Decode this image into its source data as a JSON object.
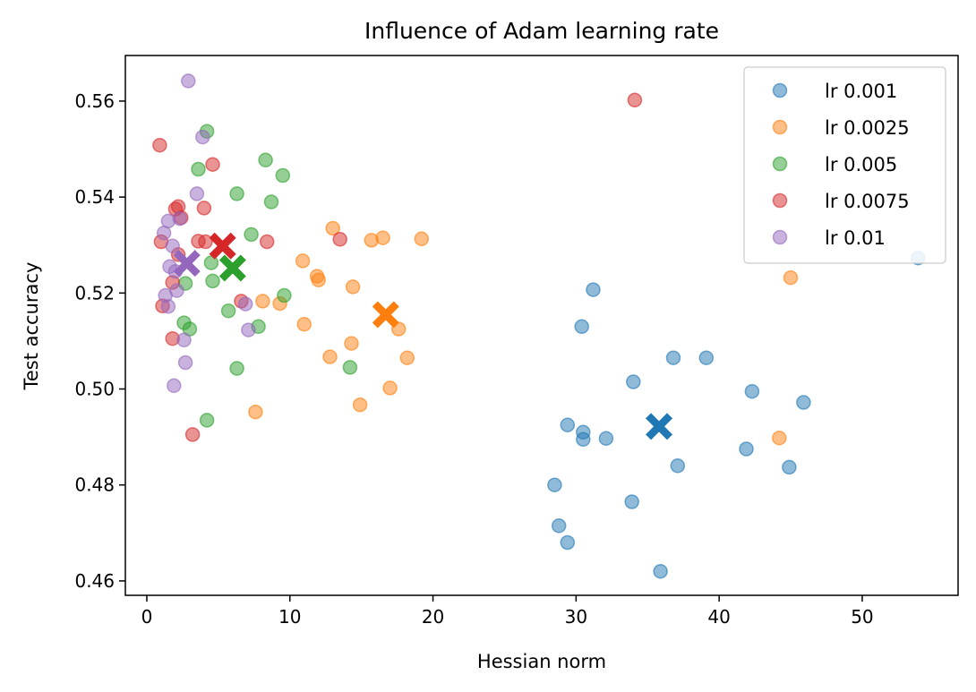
{
  "chart_data": {
    "type": "scatter",
    "title": "Influence of Adam learning rate",
    "xlabel": "Hessian norm",
    "ylabel": "Test accuracy",
    "xlim": [
      -1.5,
      56.7
    ],
    "ylim": [
      0.457,
      0.5695
    ],
    "xticks": [
      0,
      10,
      20,
      30,
      40,
      50
    ],
    "yticks": [
      0.46,
      0.48,
      0.5,
      0.52,
      0.54,
      0.56
    ],
    "ytick_labels": [
      "0.46",
      "0.48",
      "0.50",
      "0.52",
      "0.54",
      "0.56"
    ],
    "grid": false,
    "legend_position": "top-right",
    "series": [
      {
        "name": "lr 0.001",
        "color": "#1f77b4",
        "points": [
          [
            28.5,
            0.48
          ],
          [
            28.8,
            0.4715
          ],
          [
            29.4,
            0.468
          ],
          [
            29.4,
            0.4925
          ],
          [
            30.4,
            0.513
          ],
          [
            30.5,
            0.491
          ],
          [
            30.5,
            0.4895
          ],
          [
            31.2,
            0.5207
          ],
          [
            32.1,
            0.4897
          ],
          [
            33.9,
            0.4765
          ],
          [
            34.0,
            0.5015
          ],
          [
            35.9,
            0.462
          ],
          [
            36.8,
            0.5065
          ],
          [
            37.1,
            0.484
          ],
          [
            39.1,
            0.5065
          ],
          [
            41.9,
            0.4875
          ],
          [
            42.3,
            0.4995
          ],
          [
            44.9,
            0.4837
          ],
          [
            45.9,
            0.4972
          ],
          [
            53.9,
            0.5273
          ]
        ],
        "mean": [
          35.8,
          0.4922
        ]
      },
      {
        "name": "lr 0.0025",
        "color": "#ff7f0e",
        "points": [
          [
            7.6,
            0.4952
          ],
          [
            8.1,
            0.5183
          ],
          [
            9.3,
            0.5178
          ],
          [
            10.9,
            0.5267
          ],
          [
            11.0,
            0.5135
          ],
          [
            11.9,
            0.5235
          ],
          [
            12.0,
            0.5227
          ],
          [
            12.8,
            0.5067
          ],
          [
            13.0,
            0.5335
          ],
          [
            14.3,
            0.5095
          ],
          [
            14.4,
            0.5213
          ],
          [
            14.9,
            0.4967
          ],
          [
            15.7,
            0.531
          ],
          [
            16.5,
            0.5315
          ],
          [
            17.0,
            0.5002
          ],
          [
            17.6,
            0.5125
          ],
          [
            18.2,
            0.5065
          ],
          [
            19.2,
            0.5313
          ],
          [
            44.2,
            0.4898
          ],
          [
            45.0,
            0.5232
          ]
        ],
        "mean": [
          16.7,
          0.5155
        ]
      },
      {
        "name": "lr 0.005",
        "color": "#2ca02c",
        "points": [
          [
            2.6,
            0.5138
          ],
          [
            2.7,
            0.522
          ],
          [
            3.0,
            0.5125
          ],
          [
            3.6,
            0.5458
          ],
          [
            4.2,
            0.4935
          ],
          [
            4.2,
            0.5537
          ],
          [
            4.5,
            0.5263
          ],
          [
            4.6,
            0.5225
          ],
          [
            5.7,
            0.5163
          ],
          [
            6.3,
            0.5407
          ],
          [
            6.3,
            0.5043
          ],
          [
            7.3,
            0.5322
          ],
          [
            7.8,
            0.513
          ],
          [
            8.3,
            0.5477
          ],
          [
            8.7,
            0.539
          ],
          [
            9.5,
            0.5445
          ],
          [
            9.6,
            0.5195
          ],
          [
            14.2,
            0.5045
          ]
        ],
        "mean": [
          6.0,
          0.5252
        ]
      },
      {
        "name": "lr 0.0075",
        "color": "#d62728",
        "points": [
          [
            0.9,
            0.5508
          ],
          [
            1.0,
            0.5307
          ],
          [
            1.1,
            0.5173
          ],
          [
            1.8,
            0.5105
          ],
          [
            1.8,
            0.5222
          ],
          [
            2.0,
            0.5375
          ],
          [
            2.2,
            0.538
          ],
          [
            2.2,
            0.528
          ],
          [
            2.4,
            0.5357
          ],
          [
            3.2,
            0.4905
          ],
          [
            3.6,
            0.5308
          ],
          [
            4.0,
            0.5377
          ],
          [
            4.1,
            0.5307
          ],
          [
            4.6,
            0.5468
          ],
          [
            6.6,
            0.5183
          ],
          [
            8.4,
            0.5307
          ],
          [
            13.5,
            0.5312
          ],
          [
            34.1,
            0.5602
          ]
        ],
        "mean": [
          5.3,
          0.5298
        ]
      },
      {
        "name": "lr 0.01",
        "color": "#9467bd",
        "points": [
          [
            1.2,
            0.5325
          ],
          [
            1.3,
            0.5195
          ],
          [
            1.5,
            0.535
          ],
          [
            1.5,
            0.5172
          ],
          [
            1.6,
            0.5255
          ],
          [
            1.8,
            0.5298
          ],
          [
            1.9,
            0.5007
          ],
          [
            2.0,
            0.5245
          ],
          [
            2.1,
            0.5205
          ],
          [
            2.3,
            0.5355
          ],
          [
            2.6,
            0.5102
          ],
          [
            2.7,
            0.5055
          ],
          [
            2.9,
            0.5642
          ],
          [
            3.5,
            0.5407
          ],
          [
            3.9,
            0.5525
          ],
          [
            6.9,
            0.5177
          ],
          [
            7.1,
            0.5123
          ]
        ],
        "mean": [
          2.8,
          0.5262
        ]
      }
    ]
  }
}
